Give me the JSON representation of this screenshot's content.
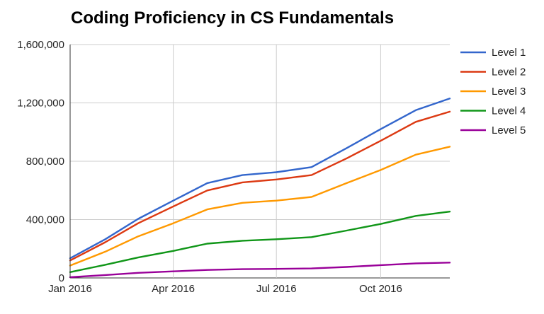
{
  "chart_data": {
    "type": "line",
    "title": "Coding Proficiency in CS Fundamentals",
    "xlabel": "",
    "ylabel": "",
    "x": [
      "2016-01-01",
      "2016-02-01",
      "2016-03-01",
      "2016-04-01",
      "2016-05-01",
      "2016-06-01",
      "2016-07-01",
      "2016-08-01",
      "2016-09-01",
      "2016-10-01",
      "2016-11-01",
      "2016-12-01"
    ],
    "x_ticks": [
      {
        "value": "2016-01-01",
        "label": "Jan 2016"
      },
      {
        "value": "2016-04-01",
        "label": "Apr 2016"
      },
      {
        "value": "2016-07-01",
        "label": "Jul 2016"
      },
      {
        "value": "2016-10-01",
        "label": "Oct 2016"
      }
    ],
    "ylim": [
      0,
      1600000
    ],
    "y_ticks": [
      {
        "value": 0,
        "label": "0"
      },
      {
        "value": 400000,
        "label": "400,000"
      },
      {
        "value": 800000,
        "label": "800,000"
      },
      {
        "value": 1200000,
        "label": "1,200,000"
      },
      {
        "value": 1600000,
        "label": "1,600,000"
      }
    ],
    "grid": true,
    "legend_position": "right",
    "series": [
      {
        "name": "Level 1",
        "color": "#3366cc",
        "values": [
          135000,
          265000,
          405000,
          530000,
          650000,
          705000,
          725000,
          760000,
          890000,
          1020000,
          1150000,
          1230000
        ]
      },
      {
        "name": "Level 2",
        "color": "#dc3912",
        "values": [
          120000,
          245000,
          375000,
          490000,
          600000,
          655000,
          675000,
          705000,
          820000,
          940000,
          1070000,
          1140000
        ]
      },
      {
        "name": "Level 3",
        "color": "#ff9900",
        "values": [
          85000,
          180000,
          285000,
          375000,
          470000,
          515000,
          530000,
          555000,
          650000,
          740000,
          845000,
          900000
        ]
      },
      {
        "name": "Level 4",
        "color": "#109618",
        "values": [
          40000,
          90000,
          140000,
          185000,
          235000,
          255000,
          265000,
          280000,
          325000,
          370000,
          425000,
          455000
        ]
      },
      {
        "name": "Level 5",
        "color": "#990099",
        "values": [
          5000,
          20000,
          35000,
          45000,
          55000,
          60000,
          62000,
          65000,
          75000,
          88000,
          100000,
          105000
        ]
      }
    ]
  }
}
